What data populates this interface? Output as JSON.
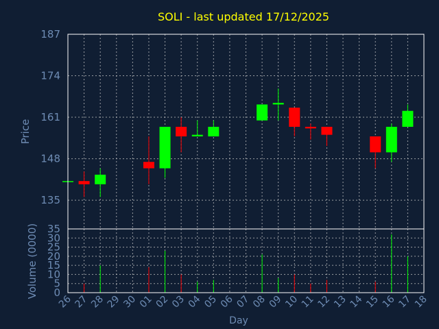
{
  "chart_data": {
    "type": "candlestick",
    "title": "SOLI - last updated 17/12/2025",
    "xlabel": "Day",
    "price_panel": {
      "ylabel": "Price",
      "ylim": [
        126,
        187
      ],
      "yticks": [
        135,
        148,
        161,
        174,
        187
      ]
    },
    "volume_panel": {
      "ylabel": "Volume (0000)",
      "ylim": [
        0,
        35
      ],
      "yticks": [
        0,
        5,
        10,
        15,
        20,
        25,
        30,
        35
      ]
    },
    "categories": [
      "26",
      "27",
      "28",
      "29",
      "30",
      "01",
      "02",
      "03",
      "04",
      "05",
      "06",
      "07",
      "08",
      "09",
      "10",
      "11",
      "12",
      "13",
      "14",
      "15",
      "16",
      "17",
      "18"
    ],
    "candles": [
      {
        "day": "26",
        "open": 141,
        "close": 141,
        "high": 141,
        "low": 141,
        "volume": 0
      },
      {
        "day": "27",
        "open": 141,
        "close": 140,
        "high": 144,
        "low": 136,
        "volume": 5
      },
      {
        "day": "28",
        "open": 140,
        "close": 143,
        "high": 145,
        "low": 136,
        "volume": 15
      },
      {
        "day": "01",
        "open": 147,
        "close": 145,
        "high": 155,
        "low": 140,
        "volume": 14
      },
      {
        "day": "02",
        "open": 145,
        "close": 158,
        "high": 158,
        "low": 142,
        "volume": 23
      },
      {
        "day": "03",
        "open": 158,
        "close": 155,
        "high": 161,
        "low": 150,
        "volume": 10
      },
      {
        "day": "04",
        "open": 155,
        "close": 155.5,
        "high": 160,
        "low": 155,
        "volume": 6
      },
      {
        "day": "05",
        "open": 155,
        "close": 158,
        "high": 160,
        "low": 155,
        "volume": 7
      },
      {
        "day": "08",
        "open": 160,
        "close": 165,
        "high": 165,
        "low": 160,
        "volume": 21
      },
      {
        "day": "09",
        "open": 165,
        "close": 165.5,
        "high": 170,
        "low": 160,
        "volume": 8
      },
      {
        "day": "10",
        "open": 164,
        "close": 158,
        "high": 164,
        "low": 155,
        "volume": 10
      },
      {
        "day": "11",
        "open": 158,
        "close": 157.5,
        "high": 159,
        "low": 154,
        "volume": 5
      },
      {
        "day": "12",
        "open": 158,
        "close": 155.5,
        "high": 158,
        "low": 152,
        "volume": 7
      },
      {
        "day": "15",
        "open": 155,
        "close": 150,
        "high": 155,
        "low": 145,
        "volume": 6
      },
      {
        "day": "16",
        "open": 150,
        "close": 158,
        "high": 159,
        "low": 147,
        "volume": 32
      },
      {
        "day": "17",
        "open": 158,
        "close": 163,
        "high": 165,
        "low": 158,
        "volume": 20
      }
    ],
    "colors": {
      "background": "#101e33",
      "up": "#00ff00",
      "down": "#ff0000",
      "title": "#ffff00",
      "axis_text": "#6e8cb4",
      "grid": "#c8c8c8",
      "frame": "#ffffff"
    },
    "grid": true
  }
}
